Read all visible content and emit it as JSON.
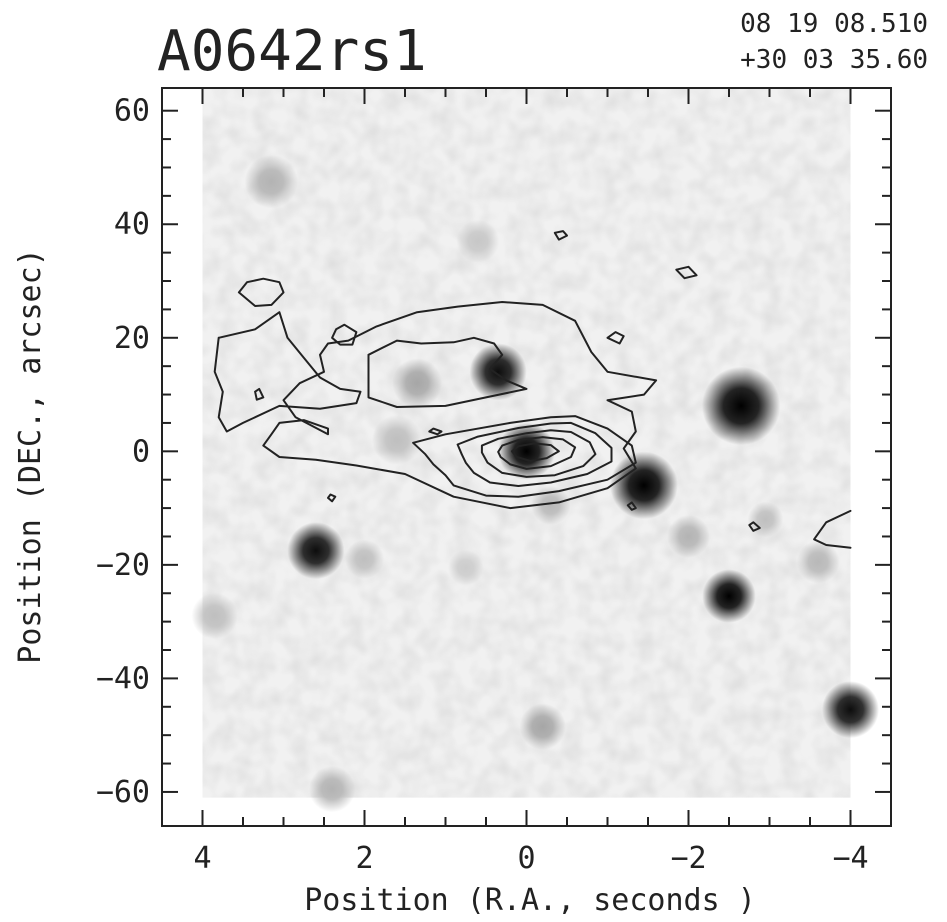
{
  "chart_data": {
    "type": "image-contour",
    "title": "A0642rs1",
    "coords": {
      "ra": "08 19 08.510",
      "dec": "+30 03 35.60"
    },
    "xlabel": "Position (R.A., seconds )",
    "ylabel": "Position (DEC., arcsec)",
    "xlim": [
      4.5,
      -4.5
    ],
    "ylim": [
      -66,
      64
    ],
    "xticks": [
      4,
      2,
      0,
      -2,
      -4
    ],
    "xtick_labels": [
      "4",
      "2",
      "0",
      "−2",
      "−4"
    ],
    "yticks": [
      60,
      40,
      20,
      0,
      -20,
      -40,
      -60
    ],
    "ytick_labels": [
      "60",
      "40",
      "20",
      "0",
      "−20",
      "−40",
      "−60"
    ],
    "image_extent": {
      "x": [
        4.0,
        -4.0
      ],
      "y": [
        -61,
        64
      ]
    },
    "sources": [
      {
        "x": 0.0,
        "y": 0.0,
        "r": 1.6,
        "peak": 1.0
      },
      {
        "x": 0.35,
        "y": 14.0,
        "r": 1.6,
        "peak": 0.95
      },
      {
        "x": -1.45,
        "y": -6.0,
        "r": 1.9,
        "peak": 1.0
      },
      {
        "x": -2.65,
        "y": 8.0,
        "r": 2.2,
        "peak": 1.0
      },
      {
        "x": 2.6,
        "y": -17.5,
        "r": 1.6,
        "peak": 0.95
      },
      {
        "x": -2.5,
        "y": -25.5,
        "r": 1.5,
        "peak": 1.0
      },
      {
        "x": -4.0,
        "y": -45.5,
        "r": 1.6,
        "peak": 0.95
      },
      {
        "x": 1.35,
        "y": 12.0,
        "r": 1.4,
        "peak": 0.35
      },
      {
        "x": 3.15,
        "y": 47.5,
        "r": 1.5,
        "peak": 0.3
      },
      {
        "x": 0.6,
        "y": 37.0,
        "r": 1.2,
        "peak": 0.22
      },
      {
        "x": -0.2,
        "y": -48.5,
        "r": 1.3,
        "peak": 0.35
      },
      {
        "x": -2.0,
        "y": -15.0,
        "r": 1.2,
        "peak": 0.3
      },
      {
        "x": -3.6,
        "y": -19.5,
        "r": 1.2,
        "peak": 0.28
      },
      {
        "x": 2.0,
        "y": -19.0,
        "r": 1.1,
        "peak": 0.25
      },
      {
        "x": 1.6,
        "y": 2.0,
        "r": 1.4,
        "peak": 0.25
      },
      {
        "x": -0.3,
        "y": -9.5,
        "r": 1.1,
        "peak": 0.28
      },
      {
        "x": -2.95,
        "y": -12.0,
        "r": 1.0,
        "peak": 0.25
      },
      {
        "x": 2.4,
        "y": -59.5,
        "r": 1.3,
        "peak": 0.3
      },
      {
        "x": 3.85,
        "y": -29.0,
        "r": 1.3,
        "peak": 0.25
      },
      {
        "x": 0.75,
        "y": -20.5,
        "r": 1.0,
        "peak": 0.2
      }
    ],
    "contours": [
      [
        [
          1.25,
          -0.5
        ],
        [
          1.4,
          1.5
        ],
        [
          1.0,
          3.0
        ],
        [
          0.2,
          5.0
        ],
        [
          -0.3,
          6.0
        ],
        [
          -0.6,
          6.2
        ],
        [
          -1.0,
          4.0
        ],
        [
          -1.3,
          1.0
        ],
        [
          -1.35,
          -2.0
        ],
        [
          -1.0,
          -5.0
        ],
        [
          -0.4,
          -7.0
        ],
        [
          0.1,
          -8.0
        ],
        [
          0.5,
          -7.8
        ],
        [
          0.9,
          -6.0
        ],
        [
          1.0,
          -4.2
        ],
        [
          1.15,
          -2.3
        ],
        [
          1.25,
          -0.5
        ]
      ],
      [
        [
          0.8,
          -0.5
        ],
        [
          0.85,
          1.2
        ],
        [
          0.6,
          2.6
        ],
        [
          0.1,
          4.1
        ],
        [
          -0.3,
          4.9
        ],
        [
          -0.55,
          5.0
        ],
        [
          -0.85,
          3.2
        ],
        [
          -1.05,
          0.6
        ],
        [
          -1.05,
          -1.8
        ],
        [
          -0.75,
          -4.0
        ],
        [
          -0.3,
          -5.5
        ],
        [
          0.1,
          -6.1
        ],
        [
          0.45,
          -5.5
        ],
        [
          0.65,
          -3.8
        ],
        [
          0.75,
          -2.0
        ],
        [
          0.8,
          -0.5
        ]
      ],
      [
        [
          0.55,
          -0.2
        ],
        [
          0.55,
          1.0
        ],
        [
          0.35,
          2.2
        ],
        [
          0.0,
          3.2
        ],
        [
          -0.3,
          3.7
        ],
        [
          -0.55,
          3.4
        ],
        [
          -0.78,
          1.6
        ],
        [
          -0.85,
          -0.5
        ],
        [
          -0.7,
          -2.6
        ],
        [
          -0.35,
          -4.2
        ],
        [
          0.0,
          -4.5
        ],
        [
          0.3,
          -3.8
        ],
        [
          0.48,
          -2.0
        ],
        [
          0.55,
          -0.2
        ]
      ],
      [
        [
          0.35,
          -0.1
        ],
        [
          0.3,
          1.0
        ],
        [
          0.1,
          2.0
        ],
        [
          -0.2,
          2.5
        ],
        [
          -0.45,
          2.1
        ],
        [
          -0.6,
          0.7
        ],
        [
          -0.55,
          -1.0
        ],
        [
          -0.3,
          -2.6
        ],
        [
          0.0,
          -3.1
        ],
        [
          0.2,
          -2.3
        ],
        [
          0.32,
          -1.0
        ],
        [
          0.35,
          -0.1
        ]
      ],
      [
        [
          0.18,
          0.0
        ],
        [
          0.1,
          0.9
        ],
        [
          -0.1,
          1.4
        ],
        [
          -0.3,
          1.1
        ],
        [
          -0.4,
          0.0
        ],
        [
          -0.25,
          -1.2
        ],
        [
          -0.05,
          -1.7
        ],
        [
          0.12,
          -1.0
        ],
        [
          0.18,
          0.0
        ]
      ],
      [
        [
          2.2,
          19.5
        ],
        [
          1.85,
          22.0
        ],
        [
          1.35,
          24.5
        ],
        [
          0.85,
          25.5
        ],
        [
          0.3,
          26.3
        ],
        [
          -0.2,
          25.8
        ],
        [
          -0.6,
          23.0
        ],
        [
          -0.8,
          17.5
        ],
        [
          -1.0,
          14.0
        ],
        [
          -1.6,
          12.5
        ],
        [
          -1.45,
          10.0
        ],
        [
          -1.0,
          9.0
        ],
        [
          -1.3,
          7.0
        ],
        [
          -1.35,
          3.5
        ],
        [
          -1.2,
          0.5
        ],
        [
          -1.35,
          -3.0
        ],
        [
          -1.0,
          -6.5
        ],
        [
          -0.4,
          -9.0
        ],
        [
          0.2,
          -10.0
        ],
        [
          0.9,
          -8.0
        ],
        [
          1.5,
          -4.0
        ],
        [
          2.1,
          -2.5
        ],
        [
          2.6,
          -1.5
        ],
        [
          3.05,
          -1.0
        ],
        [
          3.25,
          1.0
        ],
        [
          3.15,
          3.0
        ],
        [
          3.05,
          5.0
        ],
        [
          2.75,
          5.5
        ],
        [
          2.45,
          4.0
        ],
        [
          2.45,
          3.0
        ],
        [
          2.85,
          6.0
        ],
        [
          3.0,
          9.0
        ],
        [
          2.8,
          12.0
        ],
        [
          2.5,
          14.0
        ],
        [
          2.55,
          17.0
        ],
        [
          2.45,
          19.0
        ],
        [
          2.2,
          19.5
        ]
      ],
      [
        [
          1.95,
          17.0
        ],
        [
          1.6,
          19.5
        ],
        [
          1.3,
          19.0
        ],
        [
          0.9,
          19.2
        ],
        [
          0.65,
          20.0
        ],
        [
          0.4,
          19.0
        ],
        [
          0.3,
          17.0
        ],
        [
          0.45,
          14.5
        ],
        [
          0.25,
          12.5
        ],
        [
          0.0,
          11.0
        ],
        [
          0.5,
          9.5
        ],
        [
          1.0,
          8.0
        ],
        [
          1.6,
          7.8
        ],
        [
          1.95,
          9.5
        ],
        [
          1.95,
          13.0
        ],
        [
          1.95,
          17.0
        ]
      ],
      [
        [
          3.8,
          20.0
        ],
        [
          3.35,
          21.5
        ],
        [
          3.05,
          24.5
        ],
        [
          2.95,
          20.0
        ],
        [
          2.75,
          16.5
        ],
        [
          2.55,
          13.0
        ],
        [
          2.3,
          11.0
        ],
        [
          2.05,
          10.5
        ],
        [
          2.1,
          8.5
        ],
        [
          2.55,
          7.5
        ],
        [
          3.05,
          8.0
        ],
        [
          3.5,
          5.0
        ],
        [
          3.7,
          3.5
        ],
        [
          3.8,
          6.0
        ],
        [
          3.75,
          10.5
        ],
        [
          3.85,
          14.0
        ],
        [
          3.8,
          20.0
        ]
      ],
      [
        [
          3.55,
          28.0
        ],
        [
          3.45,
          29.8
        ],
        [
          3.25,
          30.4
        ],
        [
          3.05,
          29.8
        ],
        [
          3.0,
          28.0
        ],
        [
          3.15,
          25.8
        ],
        [
          3.35,
          25.6
        ],
        [
          3.55,
          28.0
        ]
      ],
      [
        [
          2.35,
          21.5
        ],
        [
          2.25,
          22.3
        ],
        [
          2.1,
          21.0
        ],
        [
          2.15,
          18.8
        ],
        [
          2.3,
          18.8
        ],
        [
          2.4,
          20.0
        ],
        [
          2.35,
          21.5
        ]
      ],
      [
        [
          3.35,
          10.5
        ],
        [
          3.3,
          11.0
        ],
        [
          3.25,
          9.5
        ],
        [
          3.33,
          9.1
        ],
        [
          3.35,
          10.5
        ]
      ],
      [
        [
          2.45,
          -8.2
        ],
        [
          2.42,
          -7.6
        ],
        [
          2.36,
          -8.0
        ],
        [
          2.4,
          -8.8
        ],
        [
          2.45,
          -8.2
        ]
      ],
      [
        [
          1.2,
          3.5
        ],
        [
          1.15,
          4.0
        ],
        [
          1.05,
          3.5
        ],
        [
          1.1,
          3.0
        ],
        [
          1.2,
          3.5
        ]
      ],
      [
        [
          -1.0,
          20.0
        ],
        [
          -1.1,
          21.0
        ],
        [
          -1.2,
          20.3
        ],
        [
          -1.15,
          19.0
        ],
        [
          -1.0,
          20.0
        ]
      ],
      [
        [
          -0.35,
          38.5
        ],
        [
          -0.45,
          38.8
        ],
        [
          -0.5,
          38.0
        ],
        [
          -0.4,
          37.3
        ],
        [
          -0.35,
          38.5
        ]
      ],
      [
        [
          -1.85,
          32.0
        ],
        [
          -2.0,
          32.5
        ],
        [
          -2.1,
          31.0
        ],
        [
          -1.95,
          30.5
        ],
        [
          -1.85,
          32.0
        ]
      ],
      [
        [
          -1.25,
          -9.5
        ],
        [
          -1.3,
          -9.0
        ],
        [
          -1.35,
          -10.0
        ],
        [
          -1.3,
          -10.3
        ],
        [
          -1.25,
          -9.5
        ]
      ],
      [
        [
          -2.75,
          -13.0
        ],
        [
          -2.8,
          -12.5
        ],
        [
          -2.88,
          -13.5
        ],
        [
          -2.8,
          -14.0
        ],
        [
          -2.75,
          -13.0
        ]
      ],
      [
        [
          -4.0,
          -10.5
        ],
        [
          -3.7,
          -12.5
        ],
        [
          -3.55,
          -15.5
        ],
        [
          -3.7,
          -16.5
        ],
        [
          -4.0,
          -17.0
        ]
      ]
    ]
  }
}
